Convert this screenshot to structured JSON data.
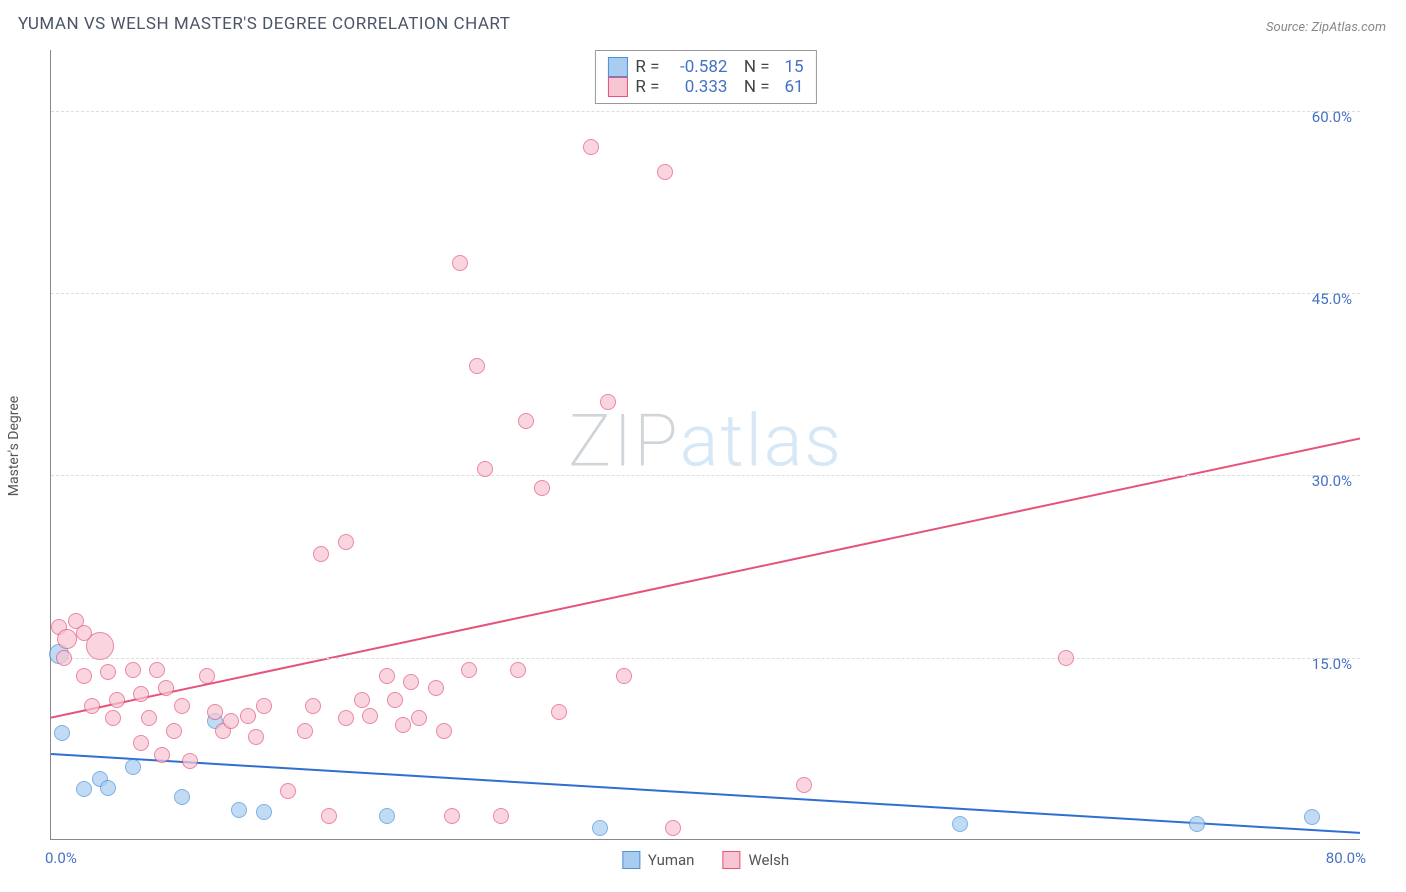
{
  "title": "YUMAN VS WELSH MASTER'S DEGREE CORRELATION CHART",
  "source_label": "Source:",
  "source_name": "ZipAtlas.com",
  "ylabel": "Master's Degree",
  "watermark_a": "ZIP",
  "watermark_b": "atlas",
  "chart": {
    "type": "scatter",
    "xlim": [
      0,
      80
    ],
    "ylim": [
      0,
      65
    ],
    "xticks": [
      0.0,
      80.0
    ],
    "xtick_labels": [
      "0.0%",
      "80.0%"
    ],
    "yticks": [
      15.0,
      30.0,
      45.0,
      60.0
    ],
    "ytick_labels": [
      "15.0%",
      "30.0%",
      "45.0%",
      "60.0%"
    ],
    "grid_color": "#dddddd",
    "axis_color": "#888888",
    "background_color": "#ffffff",
    "series": [
      {
        "name": "Yuman",
        "color_fill": "#a8cdf0",
        "color_stroke": "#4a90d9",
        "marker_radius": 8,
        "marker_opacity": 0.7,
        "R": "-0.582",
        "N": "15",
        "trend": {
          "x1": 0,
          "y1": 7.0,
          "x2": 80,
          "y2": 0.5,
          "color": "#2f6fd0",
          "width": 2
        },
        "points": [
          {
            "x": 0.5,
            "y": 15.3,
            "r": 10
          },
          {
            "x": 0.7,
            "y": 8.8
          },
          {
            "x": 2.0,
            "y": 4.2
          },
          {
            "x": 3.0,
            "y": 5.0
          },
          {
            "x": 3.5,
            "y": 4.3
          },
          {
            "x": 10.0,
            "y": 9.8
          },
          {
            "x": 11.5,
            "y": 2.5
          },
          {
            "x": 13.0,
            "y": 2.3
          },
          {
            "x": 20.5,
            "y": 2.0
          },
          {
            "x": 33.5,
            "y": 1.0
          },
          {
            "x": 55.5,
            "y": 1.3
          },
          {
            "x": 70.0,
            "y": 1.3
          },
          {
            "x": 77.0,
            "y": 1.9
          },
          {
            "x": 5.0,
            "y": 6.0
          },
          {
            "x": 8.0,
            "y": 3.5
          }
        ]
      },
      {
        "name": "Welsh",
        "color_fill": "#f7c6d2",
        "color_stroke": "#e6537a",
        "marker_radius": 8,
        "marker_opacity": 0.7,
        "R": "0.333",
        "N": "61",
        "trend": {
          "x1": 0,
          "y1": 10.0,
          "x2": 80,
          "y2": 33.0,
          "color": "#e6537a",
          "width": 2
        },
        "points": [
          {
            "x": 0.5,
            "y": 17.5
          },
          {
            "x": 1.0,
            "y": 16.5,
            "r": 10
          },
          {
            "x": 0.8,
            "y": 15.0
          },
          {
            "x": 2.0,
            "y": 13.5
          },
          {
            "x": 3.0,
            "y": 16.0,
            "r": 14
          },
          {
            "x": 2.5,
            "y": 11.0
          },
          {
            "x": 3.5,
            "y": 13.8
          },
          {
            "x": 4.0,
            "y": 11.5
          },
          {
            "x": 5.0,
            "y": 14.0
          },
          {
            "x": 5.5,
            "y": 12.0
          },
          {
            "x": 6.0,
            "y": 10.0
          },
          {
            "x": 6.5,
            "y": 14.0
          },
          {
            "x": 7.0,
            "y": 12.5
          },
          {
            "x": 7.5,
            "y": 9.0
          },
          {
            "x": 8.0,
            "y": 11.0
          },
          {
            "x": 8.5,
            "y": 6.5
          },
          {
            "x": 9.5,
            "y": 13.5
          },
          {
            "x": 10.0,
            "y": 10.5
          },
          {
            "x": 10.5,
            "y": 9.0
          },
          {
            "x": 11.0,
            "y": 9.8
          },
          {
            "x": 12.0,
            "y": 10.2
          },
          {
            "x": 12.5,
            "y": 8.5
          },
          {
            "x": 13.0,
            "y": 11.0
          },
          {
            "x": 14.5,
            "y": 4.0
          },
          {
            "x": 15.5,
            "y": 9.0
          },
          {
            "x": 16.0,
            "y": 11.0
          },
          {
            "x": 16.5,
            "y": 23.5
          },
          {
            "x": 17.0,
            "y": 2.0
          },
          {
            "x": 18.0,
            "y": 10.0
          },
          {
            "x": 18.0,
            "y": 24.5
          },
          {
            "x": 19.0,
            "y": 11.5
          },
          {
            "x": 19.5,
            "y": 10.2
          },
          {
            "x": 20.5,
            "y": 13.5
          },
          {
            "x": 21.0,
            "y": 11.5
          },
          {
            "x": 21.5,
            "y": 9.5
          },
          {
            "x": 22.0,
            "y": 13.0
          },
          {
            "x": 22.5,
            "y": 10.0
          },
          {
            "x": 23.5,
            "y": 12.5
          },
          {
            "x": 24.0,
            "y": 9.0
          },
          {
            "x": 24.5,
            "y": 2.0
          },
          {
            "x": 25.0,
            "y": 47.5
          },
          {
            "x": 25.5,
            "y": 14.0
          },
          {
            "x": 26.0,
            "y": 39.0
          },
          {
            "x": 26.5,
            "y": 30.5
          },
          {
            "x": 27.5,
            "y": 2.0
          },
          {
            "x": 28.5,
            "y": 14.0
          },
          {
            "x": 29.0,
            "y": 34.5
          },
          {
            "x": 30.0,
            "y": 29.0
          },
          {
            "x": 31.0,
            "y": 10.5
          },
          {
            "x": 33.0,
            "y": 57.0
          },
          {
            "x": 34.0,
            "y": 36.0
          },
          {
            "x": 35.0,
            "y": 13.5
          },
          {
            "x": 37.5,
            "y": 55.0
          },
          {
            "x": 38.0,
            "y": 1.0
          },
          {
            "x": 46.0,
            "y": 4.5
          },
          {
            "x": 62.0,
            "y": 15.0
          },
          {
            "x": 1.5,
            "y": 18.0
          },
          {
            "x": 2.0,
            "y": 17.0
          },
          {
            "x": 3.8,
            "y": 10.0
          },
          {
            "x": 5.5,
            "y": 8.0
          },
          {
            "x": 6.8,
            "y": 7.0
          }
        ]
      }
    ]
  }
}
